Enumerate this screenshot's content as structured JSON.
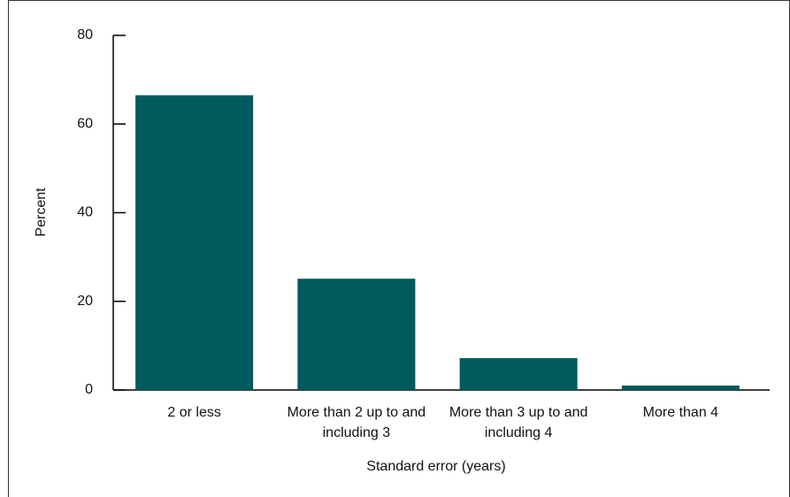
{
  "chart_data": {
    "type": "bar",
    "x_label": "Standard error (years)",
    "y_label": "Percent",
    "categories": [
      "2 or less",
      "More than 2 up to and including 3",
      "More than 3 up to and including 4",
      "More than 4"
    ],
    "values": [
      66.5,
      25.1,
      7.2,
      1.0
    ],
    "color": "#005a5e",
    "ylim": [
      0,
      80
    ],
    "yticks": [
      0,
      20,
      40,
      60,
      80
    ]
  }
}
